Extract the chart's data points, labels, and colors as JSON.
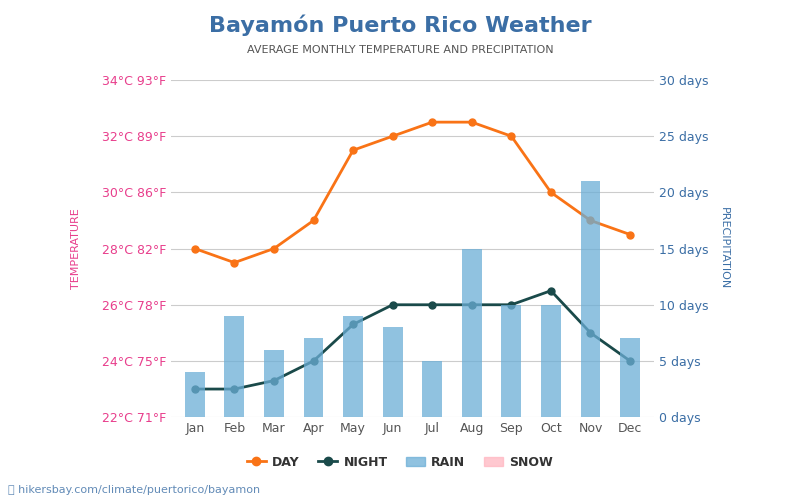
{
  "title": "Bayamón Puerto Rico Weather",
  "subtitle": "AVERAGE MONTHLY TEMPERATURE AND PRECIPITATION",
  "months": [
    "Jan",
    "Feb",
    "Mar",
    "Apr",
    "May",
    "Jun",
    "Jul",
    "Aug",
    "Sep",
    "Oct",
    "Nov",
    "Dec"
  ],
  "day_temp_C": [
    28,
    27.5,
    28,
    29,
    31.5,
    32,
    32.5,
    32.5,
    32,
    30,
    29,
    28.5
  ],
  "night_temp_C": [
    23,
    23,
    23.3,
    24,
    25.3,
    26,
    26,
    26,
    26,
    26.5,
    25,
    24
  ],
  "rain_days": [
    4,
    9,
    6,
    7,
    9,
    8,
    5,
    15,
    10,
    10,
    21,
    7
  ],
  "temp_left_ticks_C": [
    22,
    24,
    26,
    28,
    30,
    32,
    34
  ],
  "temp_left_ticks_F": [
    71,
    75,
    78,
    82,
    86,
    89,
    93
  ],
  "precip_right_ticks": [
    0,
    5,
    10,
    15,
    20,
    25,
    30
  ],
  "temp_min_C": 22,
  "temp_max_C": 34,
  "precip_min": 0,
  "precip_max": 30,
  "day_color": "#f97316",
  "night_color": "#1a4a4a",
  "rain_color": "#6baed6",
  "bar_color": "#6baed6",
  "title_color": "#3b6ea5",
  "subtitle_color": "#555555",
  "left_label_color": "#e83e8c",
  "right_label_color": "#3b6ea5",
  "background_color": "#ffffff",
  "watermark": "hikersbay.com/climate/puertorico/bayamon",
  "left_axis_label": "TEMPERATURE",
  "right_axis_label": "PRECIPITATION"
}
